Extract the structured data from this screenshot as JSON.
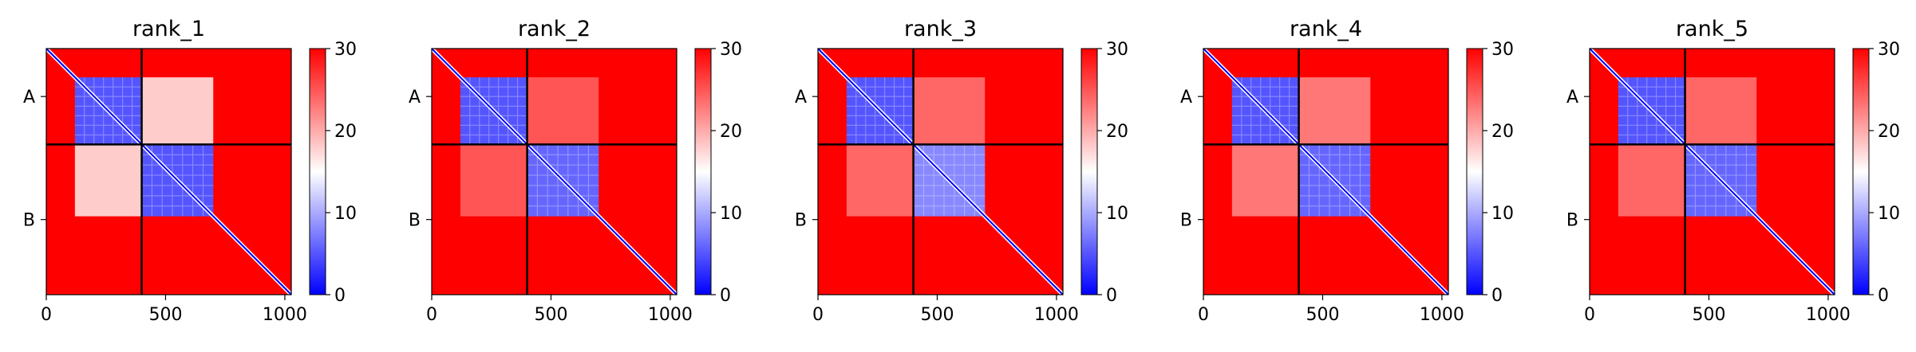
{
  "chart_data": [
    {
      "type": "heatmap",
      "title": "rank_1",
      "x_ticks": [
        0,
        500,
        1000
      ],
      "xlim": [
        0,
        1027
      ],
      "y_tick_labels": [
        "A",
        "B"
      ],
      "chain_boundary": 400,
      "colorbar": {
        "ticks": [
          0,
          10,
          20,
          30
        ],
        "range": [
          0,
          30
        ],
        "colormap": "bwr"
      },
      "blocks": [
        {
          "x": [
            0,
            400
          ],
          "y": [
            0,
            400
          ],
          "value": 30
        },
        {
          "x": [
            120,
            400
          ],
          "y": [
            120,
            400
          ],
          "value": 5
        },
        {
          "x": [
            400,
            700
          ],
          "y": [
            400,
            700
          ],
          "value": 30
        },
        {
          "x": [
            400,
            700
          ],
          "y": [
            400,
            700
          ],
          "value": 5
        },
        {
          "x": [
            400,
            700
          ],
          "y": [
            120,
            400
          ],
          "value": 18
        },
        {
          "x": [
            120,
            400
          ],
          "y": [
            400,
            700
          ],
          "value": 18
        }
      ]
    },
    {
      "type": "heatmap",
      "title": "rank_2",
      "x_ticks": [
        0,
        500,
        1000
      ],
      "xlim": [
        0,
        1027
      ],
      "y_tick_labels": [
        "A",
        "B"
      ],
      "chain_boundary": 400,
      "colorbar": {
        "ticks": [
          0,
          10,
          20,
          30
        ],
        "range": [
          0,
          30
        ],
        "colormap": "bwr"
      },
      "blocks": [
        {
          "x": [
            120,
            400
          ],
          "y": [
            120,
            400
          ],
          "value": 5
        },
        {
          "x": [
            400,
            700
          ],
          "y": [
            400,
            700
          ],
          "value": 6
        },
        {
          "x": [
            400,
            700
          ],
          "y": [
            120,
            400
          ],
          "value": 25
        },
        {
          "x": [
            120,
            400
          ],
          "y": [
            400,
            700
          ],
          "value": 25
        }
      ]
    },
    {
      "type": "heatmap",
      "title": "rank_3",
      "x_ticks": [
        0,
        500,
        1000
      ],
      "xlim": [
        0,
        1027
      ],
      "y_tick_labels": [
        "A",
        "B"
      ],
      "chain_boundary": 400,
      "colorbar": {
        "ticks": [
          0,
          10,
          20,
          30
        ],
        "range": [
          0,
          30
        ],
        "colormap": "bwr"
      },
      "blocks": [
        {
          "x": [
            120,
            400
          ],
          "y": [
            120,
            400
          ],
          "value": 5
        },
        {
          "x": [
            400,
            700
          ],
          "y": [
            400,
            700
          ],
          "value": 8
        },
        {
          "x": [
            400,
            700
          ],
          "y": [
            120,
            400
          ],
          "value": 24
        },
        {
          "x": [
            120,
            400
          ],
          "y": [
            400,
            700
          ],
          "value": 24
        }
      ]
    },
    {
      "type": "heatmap",
      "title": "rank_4",
      "x_ticks": [
        0,
        500,
        1000
      ],
      "xlim": [
        0,
        1027
      ],
      "y_tick_labels": [
        "A",
        "B"
      ],
      "chain_boundary": 400,
      "colorbar": {
        "ticks": [
          0,
          10,
          20,
          30
        ],
        "range": [
          0,
          30
        ],
        "colormap": "bwr"
      },
      "blocks": [
        {
          "x": [
            120,
            400
          ],
          "y": [
            120,
            400
          ],
          "value": 5
        },
        {
          "x": [
            400,
            700
          ],
          "y": [
            400,
            700
          ],
          "value": 6
        },
        {
          "x": [
            400,
            700
          ],
          "y": [
            120,
            400
          ],
          "value": 23
        },
        {
          "x": [
            120,
            400
          ],
          "y": [
            400,
            700
          ],
          "value": 23
        }
      ]
    },
    {
      "type": "heatmap",
      "title": "rank_5",
      "x_ticks": [
        0,
        500,
        1000
      ],
      "xlim": [
        0,
        1027
      ],
      "y_tick_labels": [
        "A",
        "B"
      ],
      "chain_boundary": 400,
      "colorbar": {
        "ticks": [
          0,
          10,
          20,
          30
        ],
        "range": [
          0,
          30
        ],
        "colormap": "bwr"
      },
      "blocks": [
        {
          "x": [
            120,
            400
          ],
          "y": [
            120,
            400
          ],
          "value": 5
        },
        {
          "x": [
            400,
            700
          ],
          "y": [
            400,
            700
          ],
          "value": 6
        },
        {
          "x": [
            400,
            700
          ],
          "y": [
            120,
            400
          ],
          "value": 24
        },
        {
          "x": [
            120,
            400
          ],
          "y": [
            400,
            700
          ],
          "value": 24
        }
      ]
    }
  ]
}
